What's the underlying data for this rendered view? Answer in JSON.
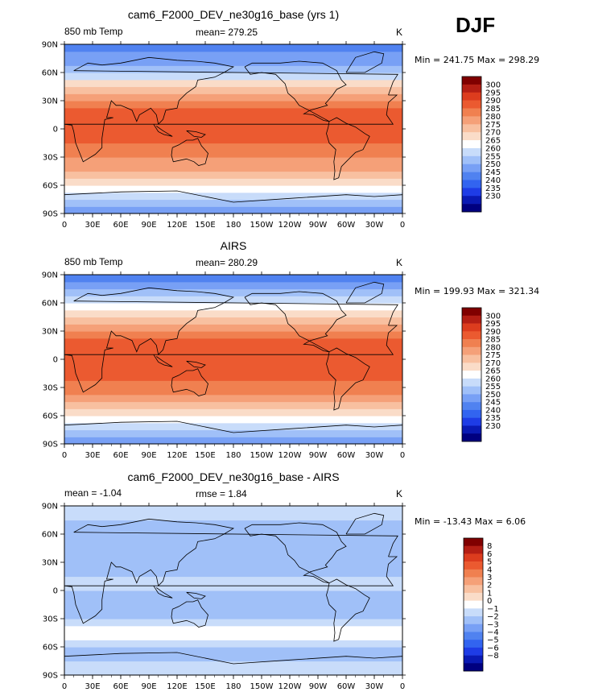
{
  "figure": {
    "season": "DJF",
    "xticks": [
      "0",
      "30E",
      "60E",
      "90E",
      "120E",
      "150E",
      "180",
      "150W",
      "120W",
      "90W",
      "60W",
      "30W",
      "0"
    ],
    "yticks": [
      "90N",
      "60N",
      "30N",
      "0",
      "30S",
      "60S",
      "90S"
    ],
    "colors": {
      "temp": [
        "#000080",
        "#0a1ab4",
        "#1e3ce6",
        "#3264f0",
        "#5082f0",
        "#78a0f5",
        "#a0c0f8",
        "#c8dcfa",
        "#ffffff",
        "#fadcc8",
        "#f8c0a0",
        "#f5a078",
        "#f08050",
        "#eb5a30",
        "#dc3c1e",
        "#b41e14",
        "#800000"
      ],
      "diff": [
        "#000080",
        "#0a1ab4",
        "#1e3ce6",
        "#3264f0",
        "#5082f0",
        "#78a0f5",
        "#a0c0f8",
        "#c8dcfa",
        "#ffffff",
        "#fadcc8",
        "#f8c0a0",
        "#f5a078",
        "#f08050",
        "#eb5a30",
        "#dc3c1e",
        "#b41e14",
        "#800000"
      ]
    }
  },
  "panels": [
    {
      "title": "cam6_F2000_DEV_ne30g16_base (yrs 1)",
      "left_label": "850 mb Temp",
      "center_label": "mean= 279.25",
      "right_label": "K",
      "minmax": "Min = 241.75 Max = 298.29"
    },
    {
      "title": "AIRS",
      "left_label": "850 mb Temp",
      "center_label": "mean= 280.29",
      "right_label": "K",
      "minmax": "Min = 199.93 Max = 321.34"
    },
    {
      "title": "cam6_F2000_DEV_ne30g16_base - AIRS",
      "left_label": "mean =   -1.04",
      "center_label": "rmse =    1.84",
      "right_label": "K",
      "minmax": "Min = -13.43 Max =    6.06"
    }
  ],
  "chart_data": [
    {
      "type": "heatmap",
      "title": "cam6_F2000_DEV_ne30g16_base (yrs 1)",
      "variable": "850 mb Temp",
      "units": "K",
      "mean": 279.25,
      "min": 241.75,
      "max": 298.29,
      "xlim": [
        0,
        360
      ],
      "ylim": [
        -90,
        90
      ],
      "levels": [
        230,
        235,
        240,
        245,
        250,
        255,
        260,
        265,
        270,
        275,
        280,
        285,
        290,
        295,
        300
      ],
      "level_labels": [
        "300",
        "295",
        "290",
        "285",
        "280",
        "275",
        "270",
        "265",
        "260",
        "255",
        "250",
        "245",
        "240",
        "235",
        "230"
      ],
      "zonal_profile_lat": [
        -90,
        -75,
        -60,
        -45,
        -30,
        -15,
        0,
        15,
        30,
        45,
        60,
        75,
        90
      ],
      "zonal_profile_value": [
        250,
        258,
        268,
        278,
        286,
        291,
        293,
        292,
        285,
        273,
        262,
        252,
        246
      ]
    },
    {
      "type": "heatmap",
      "title": "AIRS",
      "variable": "850 mb Temp",
      "units": "K",
      "mean": 280.29,
      "min": 199.93,
      "max": 321.34,
      "xlim": [
        0,
        360
      ],
      "ylim": [
        -90,
        90
      ],
      "levels": [
        230,
        235,
        240,
        245,
        250,
        255,
        260,
        265,
        270,
        275,
        280,
        285,
        290,
        295,
        300
      ],
      "level_labels": [
        "300",
        "295",
        "290",
        "285",
        "280",
        "275",
        "270",
        "265",
        "260",
        "255",
        "250",
        "245",
        "240",
        "235",
        "230"
      ],
      "zonal_profile_lat": [
        -90,
        -75,
        -60,
        -45,
        -30,
        -15,
        0,
        15,
        30,
        45,
        60,
        75,
        90
      ],
      "zonal_profile_value": [
        252,
        260,
        270,
        280,
        287,
        292,
        294,
        293,
        286,
        275,
        263,
        254,
        247
      ]
    },
    {
      "type": "heatmap",
      "title": "cam6_F2000_DEV_ne30g16_base - AIRS",
      "variable": "850 mb Temp difference",
      "units": "K",
      "mean": -1.04,
      "rmse": 1.84,
      "min": -13.43,
      "max": 6.06,
      "xlim": [
        0,
        360
      ],
      "ylim": [
        -90,
        90
      ],
      "levels": [
        -8,
        -6,
        -5,
        -4,
        -3,
        -2,
        -1,
        0,
        1,
        2,
        3,
        4,
        5,
        6,
        8
      ],
      "level_labels": [
        "8",
        "6",
        "5",
        "4",
        "3",
        "2",
        "1",
        "0",
        "−1",
        "−2",
        "−3",
        "−4",
        "−5",
        "−6",
        "−8"
      ],
      "zonal_profile_lat": [
        -90,
        -75,
        -60,
        -45,
        -30,
        -15,
        0,
        15,
        30,
        45,
        60,
        75,
        90
      ],
      "zonal_profile_value": [
        -0.5,
        -1,
        -1.5,
        0.5,
        -1,
        -1.5,
        -1,
        -1,
        -1.5,
        -1,
        -2,
        -1,
        0
      ]
    }
  ]
}
